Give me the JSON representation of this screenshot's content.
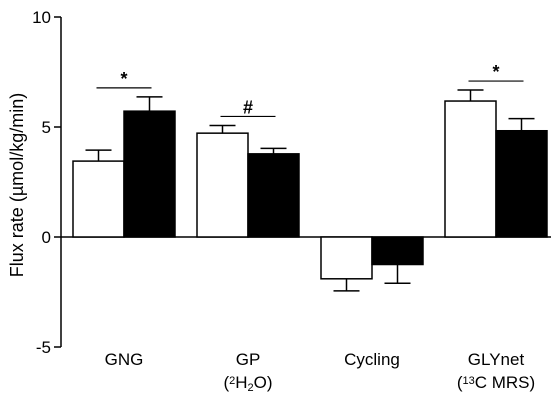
{
  "chart_data": {
    "type": "bar",
    "title": "",
    "ylabel": "Flux rate (µmol/kg/min)",
    "xlabel": "",
    "ylim": [
      -5,
      10
    ],
    "yticks": [
      "-5",
      "0",
      "5",
      "10"
    ],
    "grid": false,
    "legend": "none",
    "categories": [
      {
        "label": "GNG",
        "sub_pre": "",
        "sub_sup": "",
        "sub_mid": "",
        "sub_subscript": "",
        "sub_post": ""
      },
      {
        "label": "GP",
        "sub_pre": "(",
        "sub_sup": "2",
        "sub_mid": "H",
        "sub_subscript": "2",
        "sub_post": "O)"
      },
      {
        "label": "Cycling",
        "sub_pre": "",
        "sub_sup": "",
        "sub_mid": "",
        "sub_subscript": "",
        "sub_post": ""
      },
      {
        "label": "GLYnet",
        "sub_pre": "(",
        "sub_sup": "13",
        "sub_mid": "C MRS)",
        "sub_subscript": "",
        "sub_post": ""
      }
    ],
    "series": [
      {
        "fill": "#ffffff",
        "stroke": "#000000",
        "values": [
          3.45,
          4.72,
          -1.9,
          6.18
        ],
        "errors": [
          0.5,
          0.35,
          0.55,
          0.5
        ]
      },
      {
        "fill": "#000000",
        "stroke": "#000000",
        "values": [
          5.72,
          3.78,
          -1.25,
          4.83
        ],
        "errors": [
          0.65,
          0.25,
          0.85,
          0.55
        ]
      }
    ],
    "significance": [
      {
        "category": 0,
        "symbol": "*"
      },
      {
        "category": 1,
        "symbol": "#"
      },
      {
        "category": 3,
        "symbol": "*"
      }
    ]
  }
}
